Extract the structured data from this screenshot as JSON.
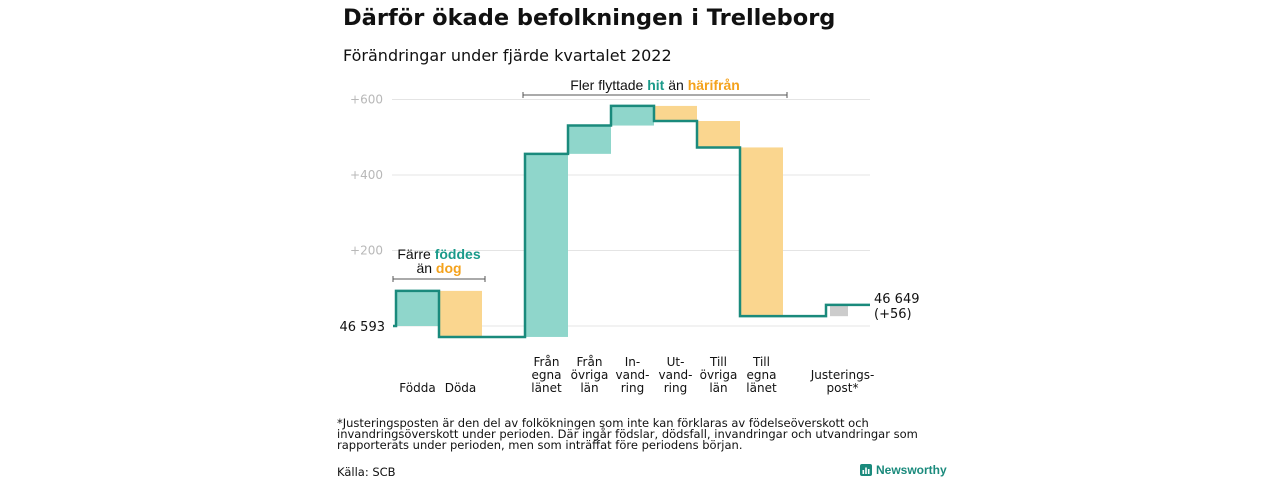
{
  "title": "Därför ökade befolkningen i Trelleborg",
  "subtitle": "Förändringar under fjärde kvartalet 2022",
  "footnote": "*Justeringsposten är den del av folkökningen som inte kan förklaras av födelseöverskott och invandringsöverskott under perioden. Där ingår födslar, dödsfall, invandringar och utvandringar som rapporterats under perioden, men som inträffat före periodens början.",
  "source": "Källa: SCB",
  "brand": "Newsworthy",
  "colors": {
    "increase": "#8fd6cb",
    "decrease": "#fad68f",
    "adjustment": "#cccccc",
    "line": "#1a8a7c",
    "teal_text": "#1a9a8a",
    "orange_text": "#f4a21c",
    "grid": "#e4e4e4",
    "tick": "#b8b8b8"
  },
  "annotations": {
    "births": {
      "line1_prefix": "Färre ",
      "line1_highlight": "föddes",
      "line2_prefix": "än ",
      "line2_highlight": "dog"
    },
    "migration": {
      "prefix": "Fler flyttade ",
      "highlight1": "hit",
      "middle": " än ",
      "highlight2": "härifrån"
    }
  },
  "chart_data": {
    "type": "waterfall",
    "title": "Därför ökade befolkningen i Trelleborg",
    "subtitle": "Förändringar under fjärde kvartalet 2022",
    "start_value": 46593,
    "start_label": "46 593",
    "end_value": 46649,
    "end_label_line1": "46 649",
    "end_label_line2": "(+56)",
    "y_ticks": [
      200,
      400,
      600
    ],
    "y_tick_labels": [
      "+200",
      "+400",
      "+600"
    ],
    "ylim": [
      -30,
      620
    ],
    "grid": true,
    "steps": [
      {
        "label_lines": [
          "Födda"
        ],
        "value": 93,
        "kind": "increase"
      },
      {
        "label_lines": [
          "Döda"
        ],
        "value": -122,
        "kind": "decrease"
      },
      {
        "label_lines": [
          "Från",
          "egna",
          "länet"
        ],
        "value": 485,
        "kind": "increase"
      },
      {
        "label_lines": [
          "Från",
          "övriga",
          "län"
        ],
        "value": 75,
        "kind": "increase"
      },
      {
        "label_lines": [
          "In-",
          "vand-",
          "ring"
        ],
        "value": 52,
        "kind": "increase"
      },
      {
        "label_lines": [
          "Ut-",
          "vand-",
          "ring"
        ],
        "value": -40,
        "kind": "decrease"
      },
      {
        "label_lines": [
          "Till",
          "övriga",
          "län"
        ],
        "value": -70,
        "kind": "decrease"
      },
      {
        "label_lines": [
          "Till",
          "egna",
          "länet"
        ],
        "value": -447,
        "kind": "decrease"
      },
      {
        "label_lines": [
          "Justerings-",
          "post*"
        ],
        "value": 30,
        "kind": "adjustment"
      }
    ]
  }
}
